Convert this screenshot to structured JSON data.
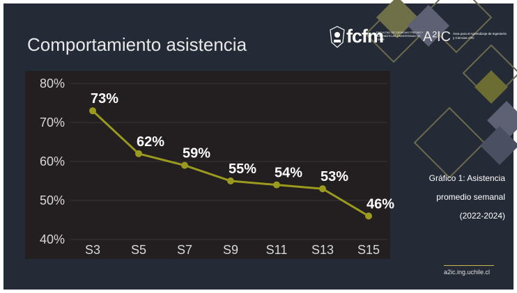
{
  "slide": {
    "title": "Comportamiento asistencia",
    "caption_line1": "Gráfico 1: Asistencia",
    "caption_line2": "promedio semanal",
    "caption_line3": "(2022-2024)",
    "url": "a2ic.ing.uchile.cl"
  },
  "logos": {
    "fcfm": "fcfm",
    "fcfm_subtitle": "FACULTAD DE CIENCIAS FÍSICAS Y MATEMÁTICAS UNIVERSIDAD DE CHILE",
    "a2ic": "A²IC",
    "a2ic_subtitle": "Área para el Aprendizaje de Ingeniería y Ciencias A²IC"
  },
  "colors": {
    "background": "#252b36",
    "plot_background": "#231f20",
    "line": "#9a9a1e",
    "text": "#ffffff"
  },
  "chart_data": {
    "type": "line",
    "title": "",
    "xlabel": "",
    "ylabel": "",
    "categories": [
      "S3",
      "S5",
      "S7",
      "S9",
      "S11",
      "S13",
      "S15"
    ],
    "series": [
      {
        "values": [
          73,
          62,
          59,
          55,
          54,
          53,
          46
        ]
      }
    ],
    "data_labels": [
      "73%",
      "62%",
      "59%",
      "55%",
      "54%",
      "53%",
      "46%"
    ],
    "yticks": [
      "40%",
      "50%",
      "60%",
      "70%",
      "80%"
    ],
    "ylim": [
      40,
      80
    ],
    "grid": true,
    "legend": "none"
  }
}
